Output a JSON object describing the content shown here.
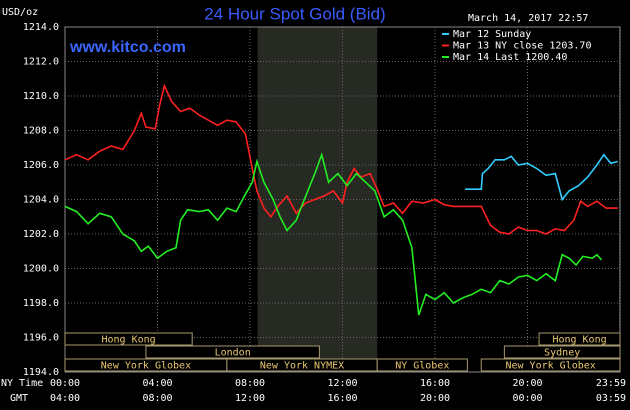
{
  "chart_data": {
    "type": "line",
    "title": "24 Hour Spot Gold (Bid)",
    "ylabel": "USD/oz",
    "date": "March 14, 2017 22:57",
    "watermark": "www.kitco.com",
    "xlabel": "NY Time",
    "x2label": "GMT",
    "xlim": [
      0,
      24
    ],
    "ylim": [
      1194,
      1214
    ],
    "yticks": [
      {
        "value": 1194,
        "label": "1194.0"
      },
      {
        "value": 1196,
        "label": "1196.0"
      },
      {
        "value": 1198,
        "label": "1198.0"
      },
      {
        "value": 1200,
        "label": "1200.0"
      },
      {
        "value": 1202,
        "label": "1202.0"
      },
      {
        "value": 1204,
        "label": "1204.0"
      },
      {
        "value": 1206,
        "label": "1206.0"
      },
      {
        "value": 1208,
        "label": "1208.0"
      },
      {
        "value": 1210,
        "label": "1210.0"
      },
      {
        "value": 1212,
        "label": "1212.0"
      },
      {
        "value": 1214,
        "label": "1214.0"
      }
    ],
    "xticks": [
      {
        "value": 0,
        "label": "00:00"
      },
      {
        "value": 4,
        "label": "04:00"
      },
      {
        "value": 8,
        "label": "08:00"
      },
      {
        "value": 12,
        "label": "12:00"
      },
      {
        "value": 16,
        "label": "16:00"
      },
      {
        "value": 20,
        "label": "20:00"
      },
      {
        "value": 23.98,
        "label": "23:59"
      }
    ],
    "x2ticks": [
      {
        "value": 0,
        "label": "04:00"
      },
      {
        "value": 4,
        "label": "08:00"
      },
      {
        "value": 8,
        "label": "12:00"
      },
      {
        "value": 12,
        "label": "16:00"
      },
      {
        "value": 16,
        "label": "20:00"
      },
      {
        "value": 20,
        "label": "00:00"
      },
      {
        "value": 23.98,
        "label": "03:59"
      }
    ],
    "grid": true,
    "shade": [
      8.33,
      13.5
    ],
    "sessions": [
      [
        {
          "label": "Hong Kong",
          "start": 0,
          "end": 5.5
        },
        {
          "label": "Hong Kong",
          "start": 20.5,
          "end": 24
        }
      ],
      [
        {
          "label": "London",
          "start": 3.5,
          "end": 11
        },
        {
          "label": "Sydney",
          "start": 19,
          "end": 24
        }
      ],
      [
        {
          "label": "New York Globex",
          "start": 0,
          "end": 7
        },
        {
          "label": "New York NYMEX",
          "start": 7,
          "end": 13.5
        },
        {
          "label": "NY Globex",
          "start": 13.5,
          "end": 17.4
        },
        {
          "label": "New York Globex",
          "start": 18,
          "end": 24
        }
      ]
    ],
    "series": [
      {
        "name": "Mar 12 Sunday",
        "color": "#33ccff",
        "x": [
          17.3,
          18.0,
          18.05,
          18.3,
          18.6,
          19.0,
          19.3,
          19.6,
          20.0,
          20.4,
          20.8,
          21.2,
          21.5,
          21.8,
          22.2,
          22.6,
          23.0,
          23.3,
          23.6,
          23.9
        ],
        "values": [
          1204.6,
          1204.6,
          1205.5,
          1205.8,
          1206.3,
          1206.3,
          1206.5,
          1206.0,
          1206.1,
          1205.8,
          1205.4,
          1205.5,
          1204.0,
          1204.5,
          1204.8,
          1205.3,
          1206.0,
          1206.6,
          1206.1,
          1206.2
        ]
      },
      {
        "name": "Mar 13 NY close 1203.70",
        "color": "#ff2020",
        "x": [
          0,
          0.5,
          1.0,
          1.5,
          2.0,
          2.5,
          3.0,
          3.3,
          3.5,
          3.9,
          4.1,
          4.3,
          4.6,
          5.0,
          5.4,
          5.8,
          6.2,
          6.6,
          7.0,
          7.4,
          7.8,
          8.1,
          8.3,
          8.6,
          8.9,
          9.2,
          9.6,
          10.0,
          10.4,
          10.8,
          11.2,
          11.6,
          12.0,
          12.2,
          12.5,
          12.8,
          13.2,
          13.5,
          13.8,
          14.2,
          14.6,
          15.0,
          15.5,
          16.0,
          16.4,
          16.8,
          17.4,
          18.0,
          18.4,
          18.8,
          19.2,
          19.6,
          20.0,
          20.4,
          20.8,
          21.2,
          21.6,
          22.0,
          22.3,
          22.6,
          23.0,
          23.4,
          23.9
        ],
        "values": [
          1206.3,
          1206.6,
          1206.3,
          1206.8,
          1207.1,
          1206.9,
          1208.0,
          1209.0,
          1208.2,
          1208.1,
          1209.5,
          1210.6,
          1209.7,
          1209.1,
          1209.3,
          1208.9,
          1208.6,
          1208.3,
          1208.6,
          1208.5,
          1207.8,
          1205.8,
          1204.5,
          1203.5,
          1203.0,
          1203.6,
          1204.2,
          1203.2,
          1203.8,
          1204.0,
          1204.2,
          1204.5,
          1203.8,
          1205.0,
          1205.8,
          1205.3,
          1205.5,
          1204.6,
          1203.6,
          1203.8,
          1203.2,
          1203.9,
          1203.8,
          1204.0,
          1203.7,
          1203.6,
          1203.6,
          1203.6,
          1202.5,
          1202.1,
          1202.0,
          1202.4,
          1202.2,
          1202.2,
          1202.0,
          1202.3,
          1202.2,
          1202.8,
          1203.9,
          1203.6,
          1203.9,
          1203.5,
          1203.5
        ]
      },
      {
        "name": "Mar 14 Last 1200.40",
        "color": "#22ee22",
        "x": [
          0,
          0.5,
          1.0,
          1.5,
          2.0,
          2.5,
          3.0,
          3.3,
          3.6,
          4.0,
          4.4,
          4.8,
          5.0,
          5.3,
          5.8,
          6.2,
          6.6,
          7.0,
          7.4,
          7.8,
          8.1,
          8.3,
          8.6,
          9.0,
          9.3,
          9.6,
          10.0,
          10.2,
          10.5,
          10.8,
          11.1,
          11.4,
          11.8,
          12.2,
          12.6,
          13.0,
          13.4,
          13.8,
          14.2,
          14.6,
          15.0,
          15.2,
          15.3,
          15.6,
          16.0,
          16.4,
          16.8,
          17.2,
          17.6,
          18.0,
          18.4,
          18.8,
          19.2,
          19.6,
          20.0,
          20.4,
          20.8,
          21.2,
          21.5,
          21.8,
          22.1,
          22.4,
          22.8,
          23.0,
          23.2
        ],
        "values": [
          1203.6,
          1203.3,
          1202.6,
          1203.2,
          1203.0,
          1202.0,
          1201.6,
          1201.0,
          1201.3,
          1200.6,
          1201.0,
          1201.2,
          1202.8,
          1203.4,
          1203.3,
          1203.4,
          1202.8,
          1203.5,
          1203.3,
          1204.3,
          1205.0,
          1206.2,
          1205.0,
          1204.0,
          1203.0,
          1202.2,
          1202.8,
          1203.5,
          1204.5,
          1205.5,
          1206.6,
          1205.0,
          1205.5,
          1204.8,
          1205.5,
          1205.0,
          1204.5,
          1203.0,
          1203.4,
          1202.8,
          1201.2,
          1198.6,
          1197.3,
          1198.5,
          1198.2,
          1198.6,
          1198.0,
          1198.3,
          1198.5,
          1198.8,
          1198.6,
          1199.3,
          1199.1,
          1199.5,
          1199.6,
          1199.3,
          1199.7,
          1199.3,
          1200.8,
          1200.6,
          1200.2,
          1200.7,
          1200.6,
          1200.8,
          1200.5
        ]
      }
    ]
  }
}
